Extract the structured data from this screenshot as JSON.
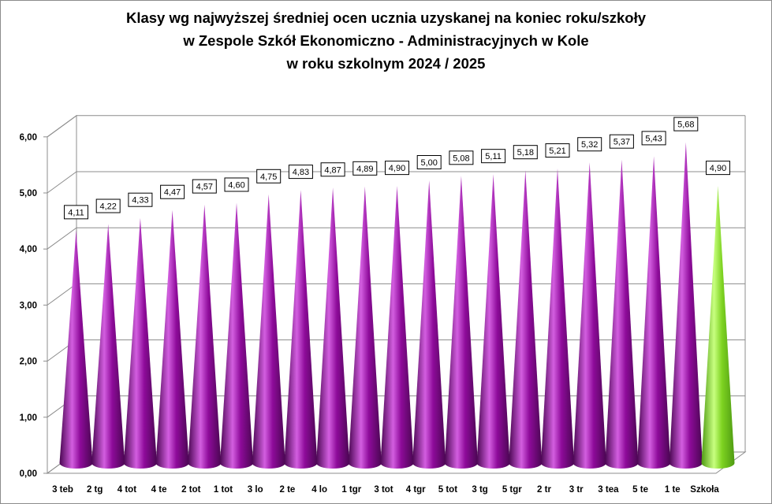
{
  "chart_data": {
    "type": "bar",
    "bar_shape": "cone",
    "title_lines": [
      "Klasy wg najwyższej średniej ocen ucznia uzyskanej na koniec roku/szkoły",
      "w Zespole Szkół Ekonomiczno - Administracyjnych w Kole",
      "w roku szkolnym 2024 / 2025"
    ],
    "categories": [
      "3 teb",
      "2 tg",
      "4 tot",
      "4 te",
      "2 tot",
      "1 tot",
      "3 lo",
      "2 te",
      "4 lo",
      "1 tgr",
      "3 tot",
      "4 tgr",
      "5 tot",
      "3 tg",
      "5 tgr",
      "2 tr",
      "3 tr",
      "3 tea",
      "5 te",
      "1 te",
      "Szkoła"
    ],
    "values": [
      4.11,
      4.22,
      4.33,
      4.47,
      4.57,
      4.6,
      4.75,
      4.83,
      4.87,
      4.89,
      4.9,
      5.0,
      5.08,
      5.11,
      5.18,
      5.21,
      5.32,
      5.37,
      5.43,
      5.68,
      4.9
    ],
    "data_labels": [
      "4,11",
      "4,22",
      "4,33",
      "4,47",
      "4,57",
      "4,60",
      "4,75",
      "4,83",
      "4,87",
      "4,89",
      "4,90",
      "5,00",
      "5,08",
      "5,11",
      "5,18",
      "5,21",
      "5,32",
      "5,37",
      "5,43",
      "5,68",
      "4,90"
    ],
    "y_ticks": [
      0,
      1,
      2,
      3,
      4,
      5,
      6
    ],
    "y_tick_labels": [
      "0,00",
      "1,00",
      "2,00",
      "3,00",
      "4,00",
      "5,00",
      "6,00"
    ],
    "ylim": [
      0,
      6
    ],
    "grid": true,
    "legend": "none",
    "colors": {
      "bar": "#8e0b9a",
      "bar_highlight": "#d35ee0",
      "bar_shadow": "#4a0652",
      "school_bar": "#7ed321",
      "school_bar_highlight": "#c8ff80",
      "school_bar_shadow": "#4e9a12",
      "grid": "#8c8c8c"
    }
  }
}
